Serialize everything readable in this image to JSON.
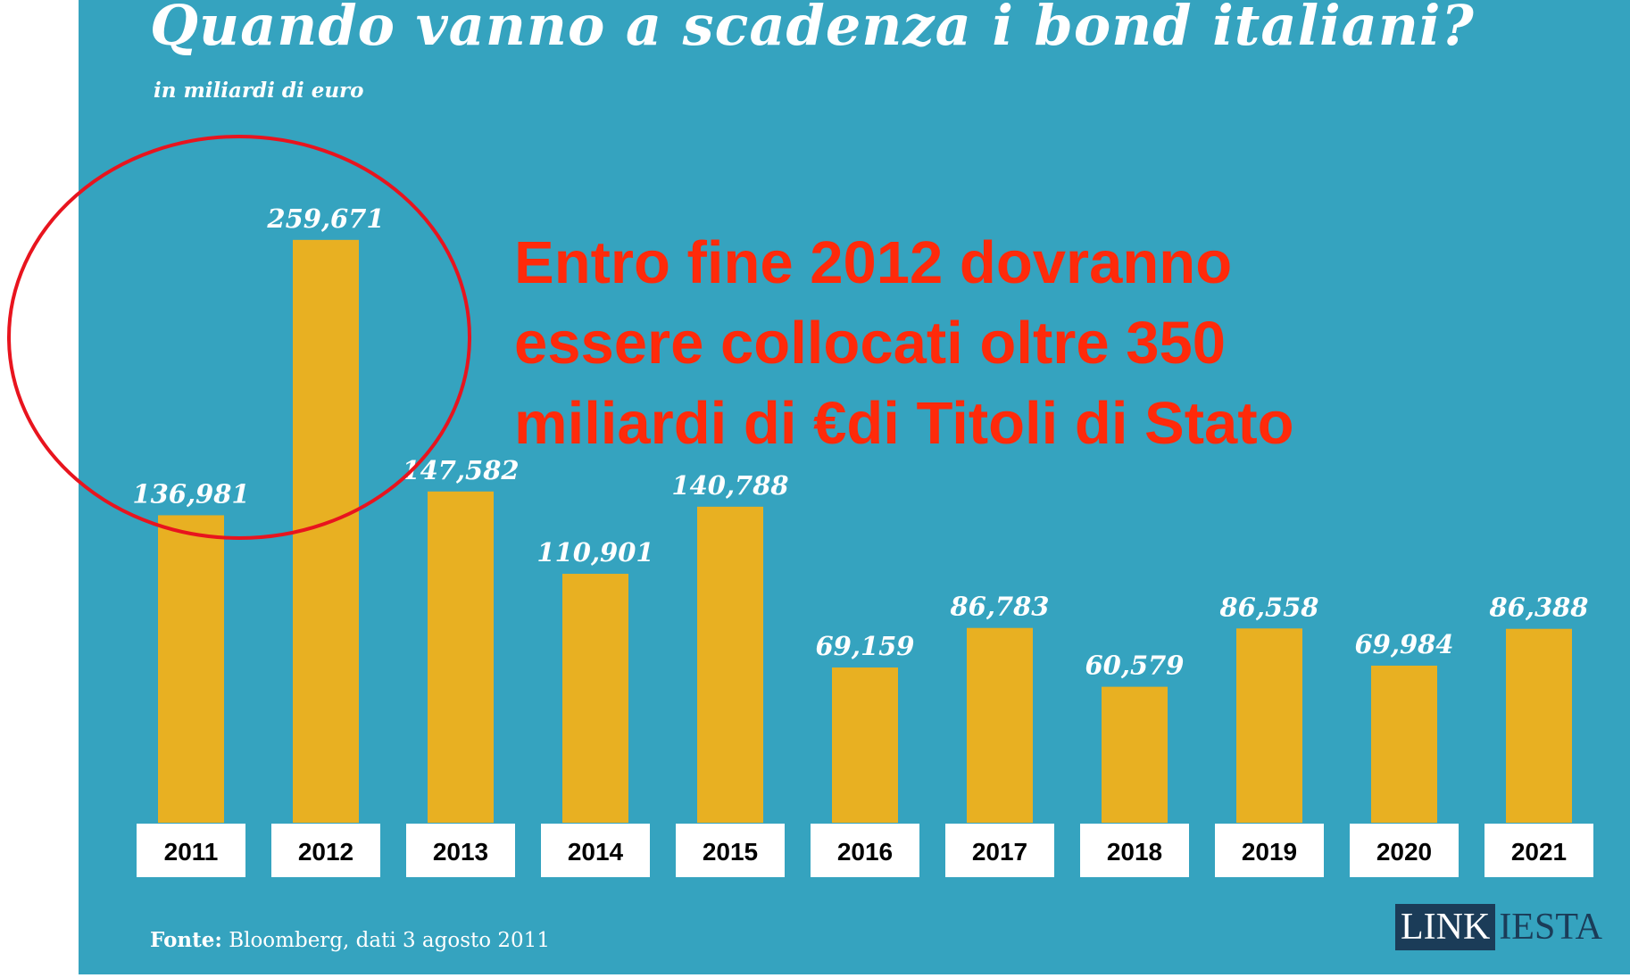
{
  "chart_data": {
    "type": "bar",
    "title": "Quando vanno a scadenza i bond italiani?",
    "subtitle": "in miliardi di euro",
    "categories": [
      "2011",
      "2012",
      "2013",
      "2014",
      "2015",
      "2016",
      "2017",
      "2018",
      "2019",
      "2020",
      "2021"
    ],
    "values": [
      136.981,
      259.671,
      147.582,
      110.901,
      140.788,
      69.159,
      86.783,
      60.579,
      86.558,
      69.984,
      86.388
    ],
    "value_labels": [
      "136,981",
      "259,671",
      "147,582",
      "110,901",
      "140,788",
      "69,159",
      "86,783",
      "60,579",
      "86,558",
      "69,984",
      "86,388"
    ],
    "xlabel": "",
    "ylabel": "",
    "ylim": [
      0,
      260
    ],
    "grid": false,
    "legend": "none",
    "annotation": "Entro fine 2012 dovranno\nessere collocati oltre 350\nmiliardi di €di Titoli di Stato",
    "highlighted_categories": [
      "2011",
      "2012"
    ]
  },
  "source": {
    "label": "Fonte:",
    "text": "Bloomberg, dati 3 agosto 2011"
  },
  "logo": {
    "part1": "LINK",
    "part2": "IESTA"
  },
  "colors": {
    "background": "#35a3bf",
    "bar": "#e8b022",
    "annotation": "#ff2a0a",
    "circle": "#e8141e",
    "label_box": "#ffffff",
    "logo_dark": "#1b3c58"
  }
}
